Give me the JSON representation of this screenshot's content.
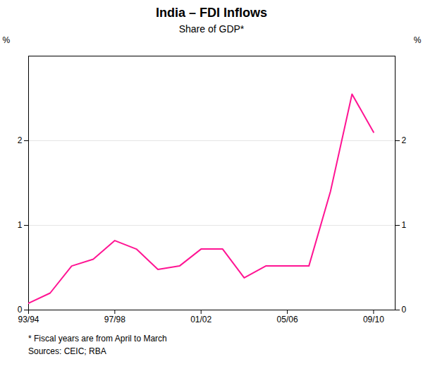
{
  "chart_data": {
    "type": "line",
    "title": "India – FDI Inflows",
    "subtitle": "Share of GDP*",
    "ylabel": "%",
    "y2label": "%",
    "footnote": "*    Fiscal years are from April to March",
    "sources": "Sources: CEIC; RBA",
    "x": [
      1993,
      1994,
      1995,
      1996,
      1997,
      1998,
      1999,
      2000,
      2001,
      2002,
      2003,
      2004,
      2005,
      2006,
      2007,
      2008,
      2009
    ],
    "values": [
      0.08,
      0.2,
      0.52,
      0.6,
      0.82,
      0.72,
      0.48,
      0.52,
      0.72,
      0.72,
      0.38,
      0.52,
      0.52,
      0.52,
      1.4,
      2.55,
      2.1
    ],
    "color": "#FF1493",
    "xlim": [
      1993,
      2010
    ],
    "xticks": [
      {
        "value": 1993,
        "label": "93/94"
      },
      {
        "value": 1997,
        "label": "97/98"
      },
      {
        "value": 2001,
        "label": "01/02"
      },
      {
        "value": 2005,
        "label": "05/06"
      },
      {
        "value": 2009,
        "label": "09/10"
      }
    ],
    "ylim": [
      0,
      3.0
    ],
    "yticks": [
      0,
      1,
      2
    ],
    "y2lim": [
      0,
      3.0
    ],
    "y2ticks": [
      0,
      1,
      2
    ],
    "grid": true
  }
}
